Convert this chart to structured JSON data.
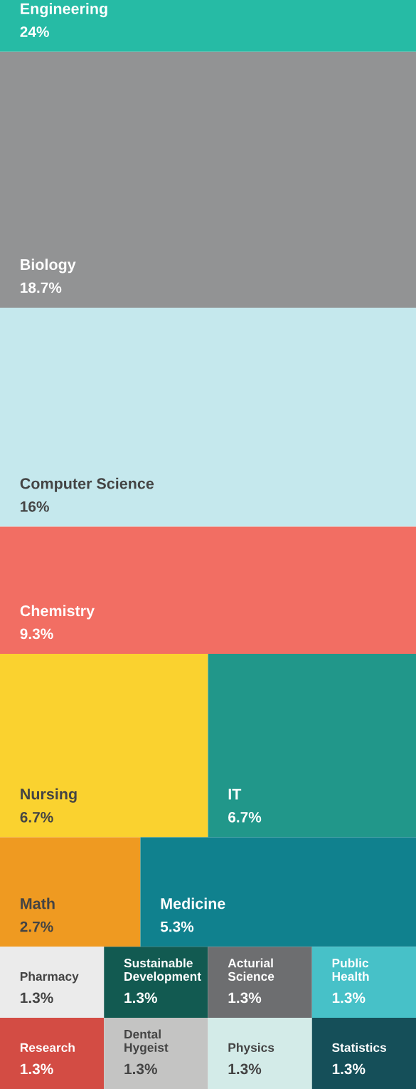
{
  "chart_data": {
    "type": "other",
    "categories": [
      "Engineering",
      "Biology",
      "Computer Science",
      "Chemistry",
      "Nursing",
      "IT",
      "Math",
      "Medicine",
      "Pharmacy",
      "Sustainable Development",
      "Acturial Science",
      "Public Health",
      "Research",
      "Dental Hygeist",
      "Physics",
      "Statistics"
    ],
    "values": [
      24,
      18.7,
      16,
      9.3,
      6.7,
      6.7,
      2.7,
      5.3,
      1.3,
      1.3,
      1.3,
      1.3,
      1.3,
      1.3,
      1.3,
      1.3
    ],
    "value_labels": [
      "24%",
      "18.7%",
      "16%",
      "9.3%",
      "6.7%",
      "6.7%",
      "2.7%",
      "5.3%",
      "1.3%",
      "1.3%",
      "1.3%",
      "1.3%",
      "1.3%",
      "1.3%",
      "1.3%",
      "1.3%"
    ],
    "colors": [
      "#26bba5",
      "#929394",
      "#c5e8ed",
      "#f26e63",
      "#fad22f",
      "#21978a",
      "#ef9a21",
      "#10818e",
      "#ebebeb",
      "#125a51",
      "#6d6e70",
      "#47c1c8",
      "#d34c44",
      "#c4c4c3",
      "#d3ebe8",
      "#154f59"
    ]
  }
}
